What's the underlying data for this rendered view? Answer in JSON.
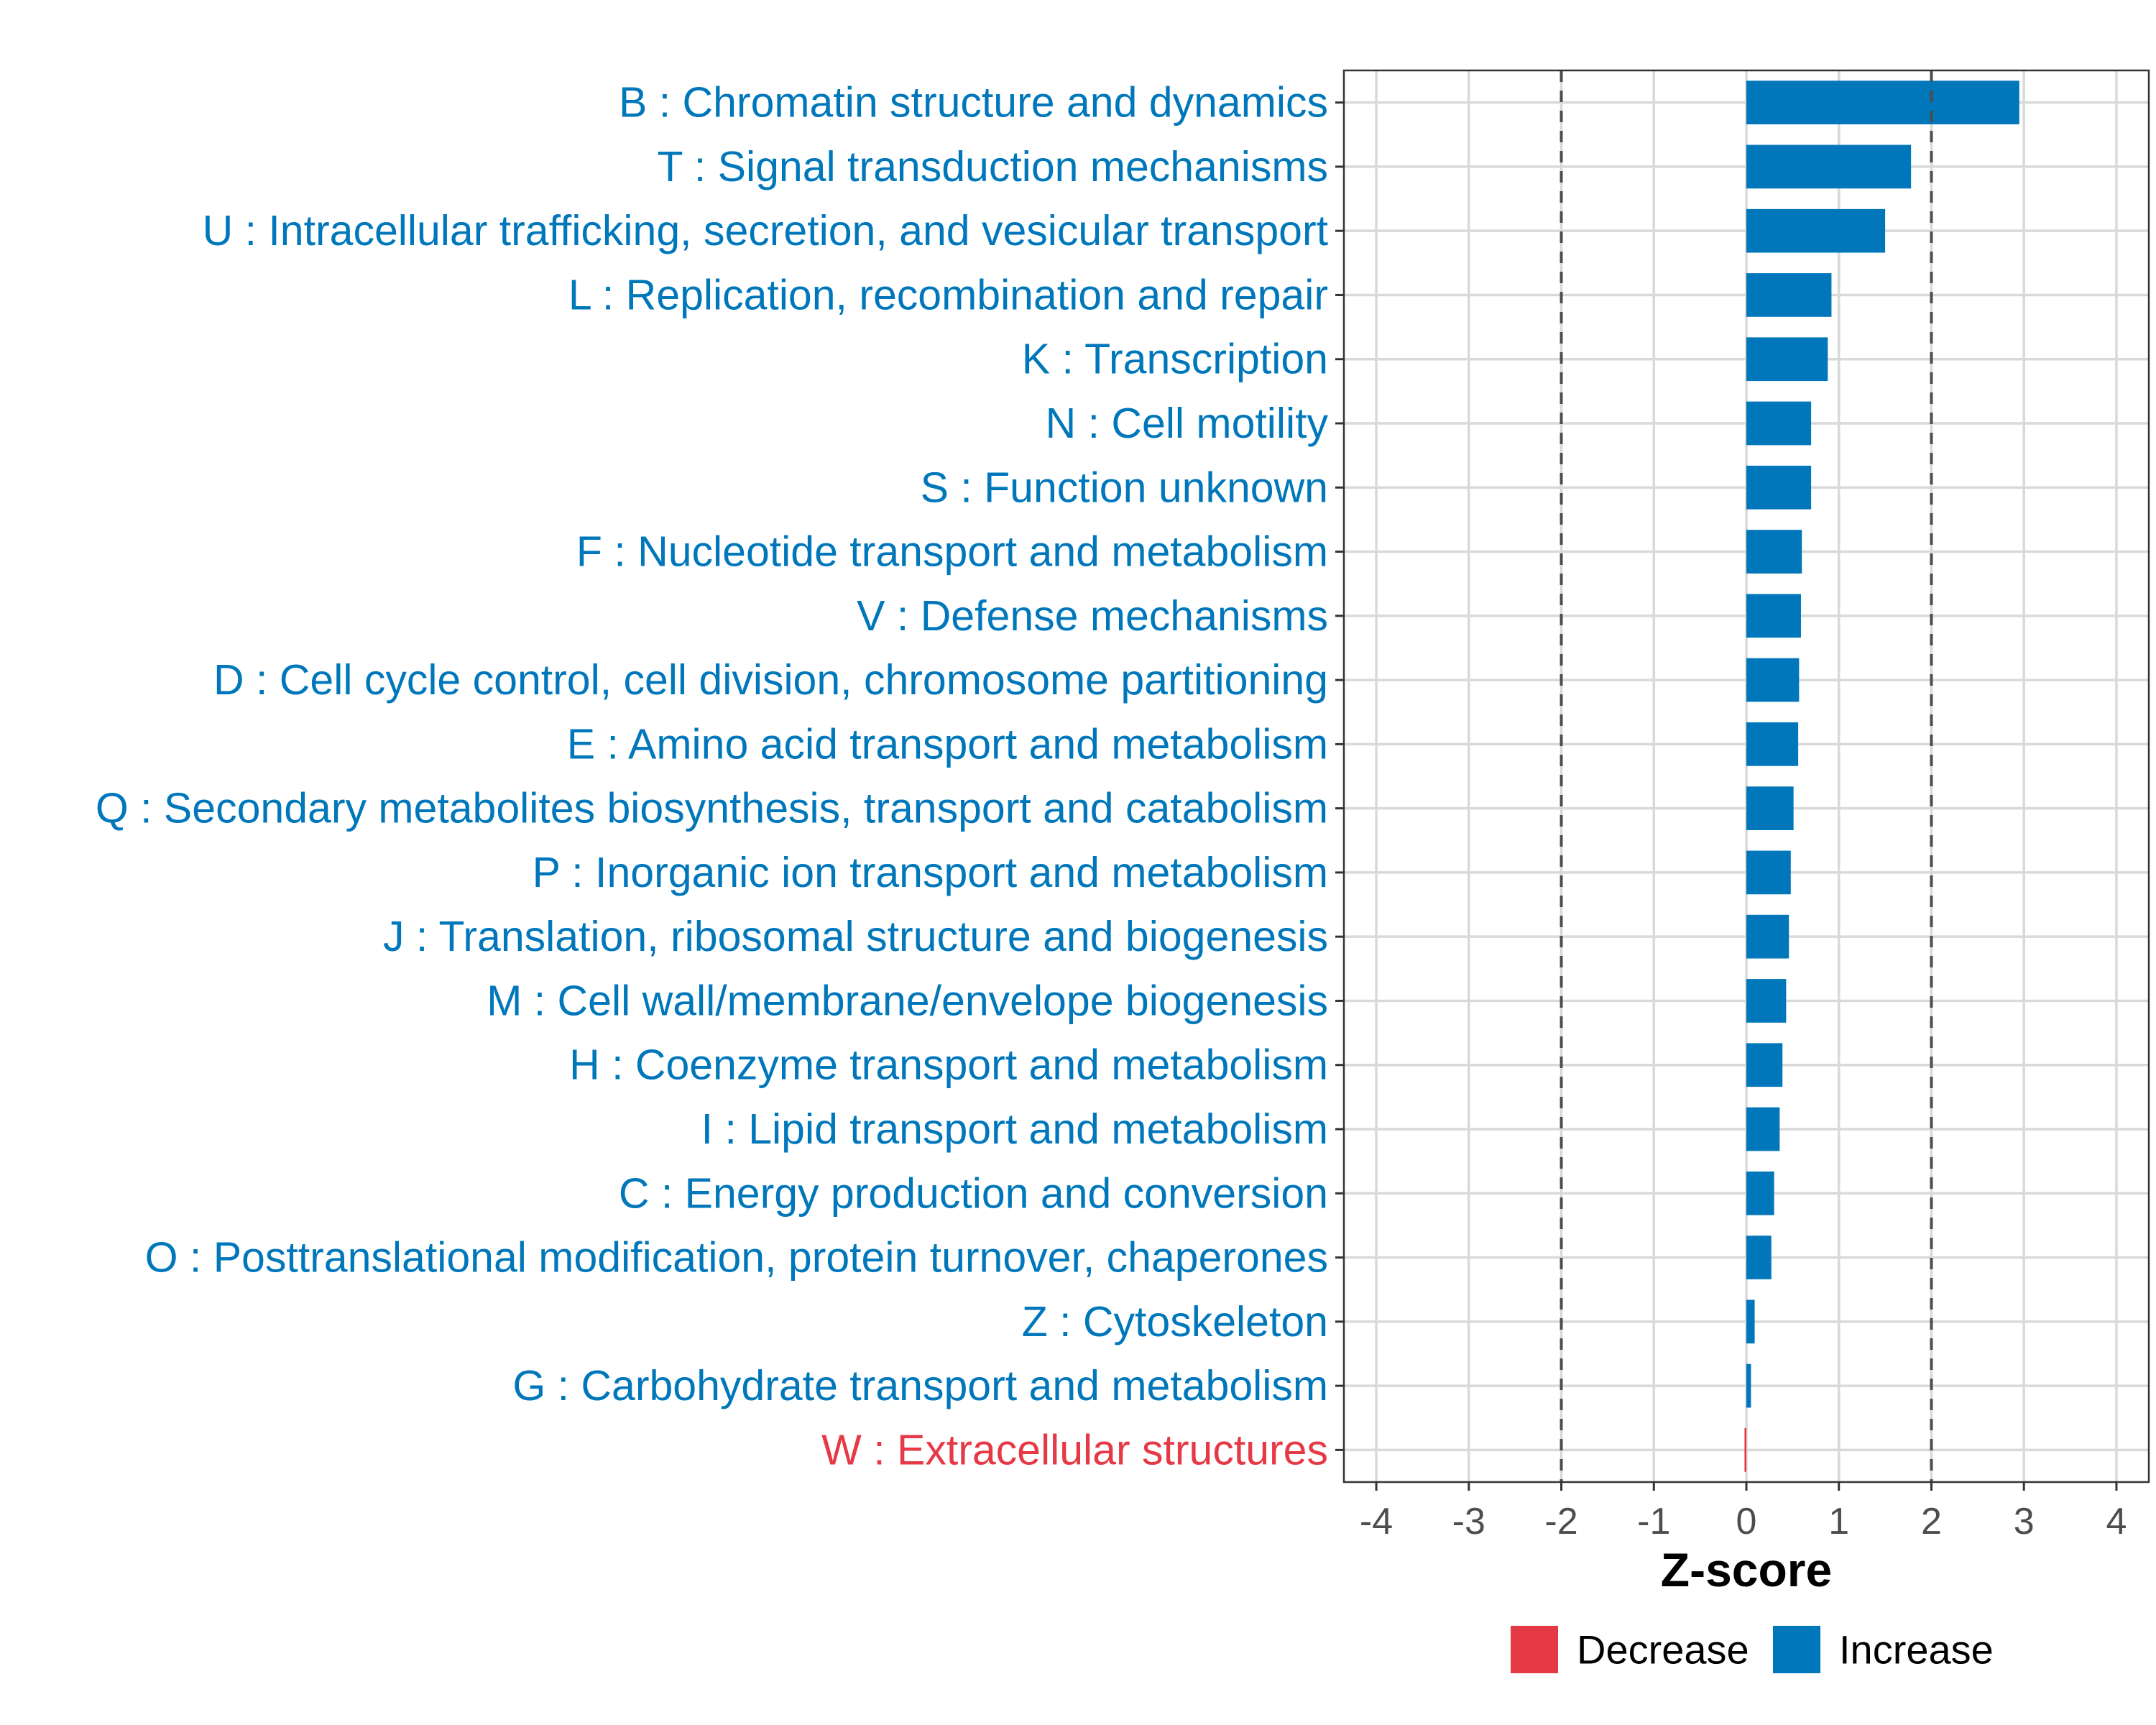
{
  "chart_data": {
    "type": "bar",
    "orientation": "horizontal",
    "title": "",
    "xlabel": "Z-score",
    "ylabel": "",
    "xlim": [
      -4.35,
      4.35
    ],
    "x_ticks": [
      -4,
      -3,
      -2,
      -1,
      0,
      1,
      2,
      3,
      4
    ],
    "reference_lines": [
      -2,
      2
    ],
    "grid": true,
    "categories": [
      "B : Chromatin structure and dynamics",
      "T : Signal transduction mechanisms",
      "U : Intracellular trafficking, secretion, and vesicular transport",
      "L : Replication, recombination and repair",
      "K : Transcription",
      "N : Cell motility",
      "S : Function unknown",
      "F : Nucleotide transport and metabolism",
      "V : Defense mechanisms",
      "D : Cell cycle control, cell division, chromosome partitioning",
      "E : Amino acid transport and metabolism",
      "Q : Secondary metabolites biosynthesis, transport and catabolism",
      "P : Inorganic ion transport and metabolism",
      "J : Translation, ribosomal structure and biogenesis",
      "M : Cell wall/membrane/envelope biogenesis",
      "H : Coenzyme transport and metabolism",
      "I : Lipid transport and metabolism",
      "C : Energy production and conversion",
      "O : Posttranslational modification, protein turnover, chaperones",
      "Z : Cytoskeleton",
      "G : Carbohydrate transport and metabolism",
      "W : Extracellular structures"
    ],
    "values": [
      2.95,
      1.78,
      1.5,
      0.92,
      0.88,
      0.7,
      0.7,
      0.6,
      0.59,
      0.57,
      0.56,
      0.51,
      0.48,
      0.46,
      0.43,
      0.39,
      0.36,
      0.3,
      0.27,
      0.09,
      0.05,
      -0.02
    ],
    "direction": [
      "Increase",
      "Increase",
      "Increase",
      "Increase",
      "Increase",
      "Increase",
      "Increase",
      "Increase",
      "Increase",
      "Increase",
      "Increase",
      "Increase",
      "Increase",
      "Increase",
      "Increase",
      "Increase",
      "Increase",
      "Increase",
      "Increase",
      "Increase",
      "Increase",
      "Decrease"
    ],
    "legend": {
      "position": "bottom",
      "entries": [
        {
          "label": "Decrease",
          "color": "#e63946"
        },
        {
          "label": "Increase",
          "color": "#0077bb"
        }
      ]
    },
    "colors": {
      "Increase": "#0077bb",
      "Decrease": "#e63946"
    }
  }
}
